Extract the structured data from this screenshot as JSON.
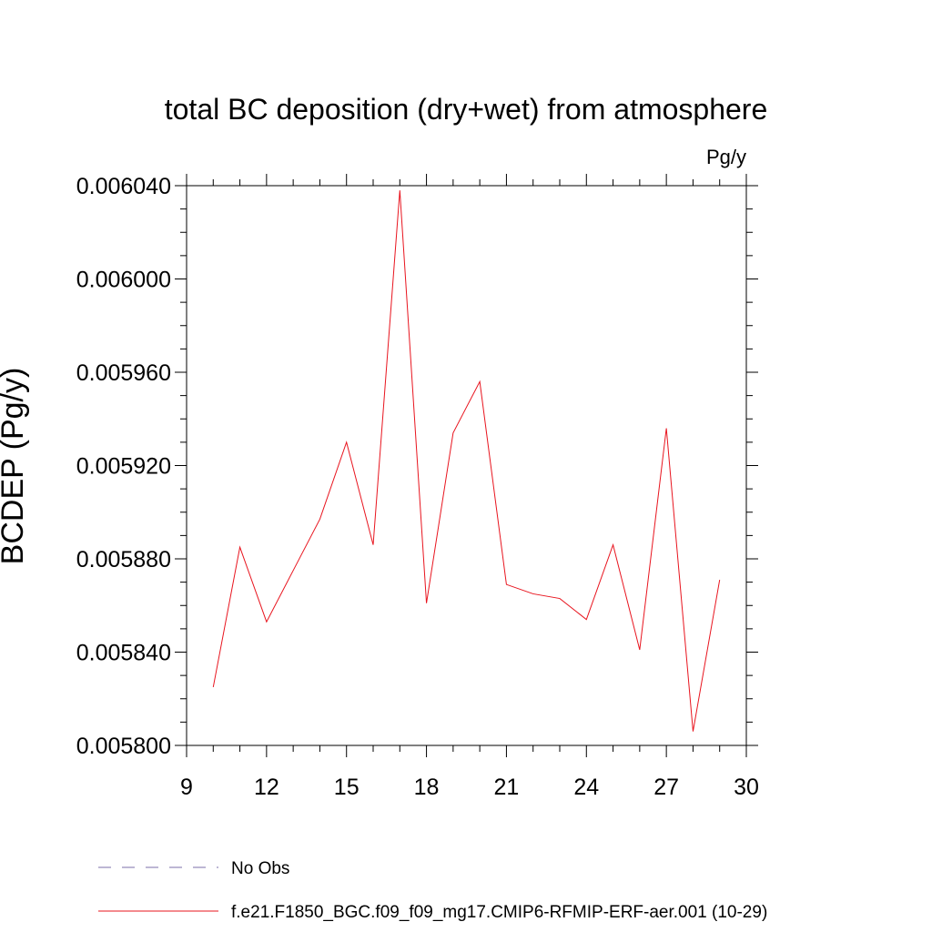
{
  "chart_data": {
    "type": "line",
    "title": "total BC deposition (dry+wet) from atmosphere",
    "units_label": "Pg/y",
    "ylabel": "BCDEP  (Pg/y)",
    "xlabel": "",
    "xlim": [
      9,
      30
    ],
    "ylim": [
      0.0058,
      0.00604
    ],
    "x_ticks": [
      9,
      12,
      15,
      18,
      21,
      24,
      27,
      30
    ],
    "y_ticks": [
      "0.005800",
      "0.005840",
      "0.005880",
      "0.005920",
      "0.005960",
      "0.006000",
      "0.006040"
    ],
    "grid": false,
    "legend_position": "bottom-left",
    "series": [
      {
        "name": "f.e21.F1850_BGC.f09_f09_mg17.CMIP6-RFMIP-ERF-aer.001 (10-29)",
        "color": "#e8141e",
        "line_style": "solid",
        "x": [
          10,
          11,
          12,
          13,
          14,
          15,
          16,
          17,
          18,
          19,
          20,
          21,
          22,
          23,
          24,
          25,
          26,
          27,
          28,
          29
        ],
        "y": [
          0.005825,
          0.005885,
          0.005853,
          0.005875,
          0.005897,
          0.00593,
          0.005886,
          0.006038,
          0.005861,
          0.005934,
          0.005956,
          0.005869,
          0.005865,
          0.005863,
          0.005854,
          0.005886,
          0.005841,
          0.005936,
          0.005806,
          0.005871
        ]
      }
    ],
    "legend": [
      {
        "label": "No Obs",
        "color": "#7b6fa8",
        "line_style": "dashed"
      },
      {
        "label": "f.e21.F1850_BGC.f09_f09_mg17.CMIP6-RFMIP-ERF-aer.001 (10-29)",
        "color": "#e8141e",
        "line_style": "solid"
      }
    ]
  }
}
